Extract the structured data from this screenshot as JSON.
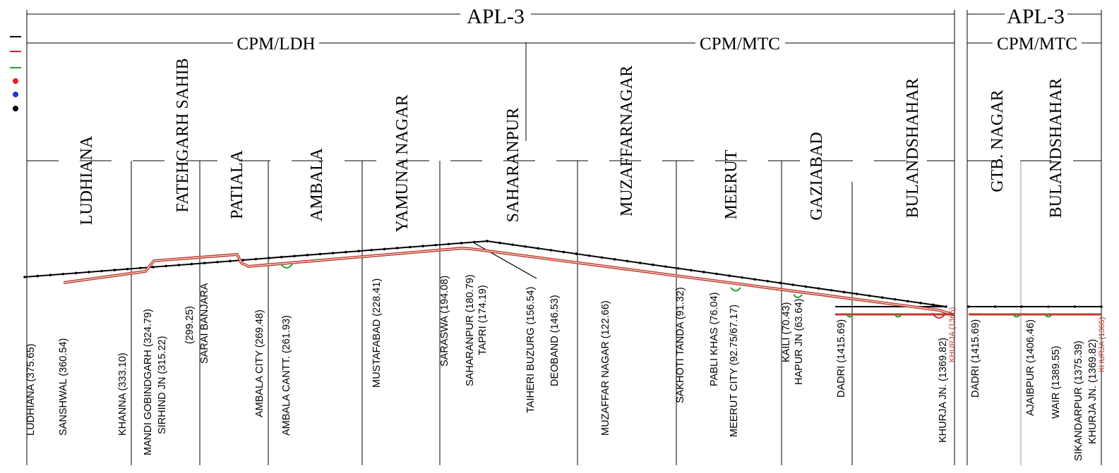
{
  "legend": {
    "items": [
      {
        "symbol": "line",
        "color": "#000000"
      },
      {
        "symbol": "line",
        "color": "#e8201c"
      },
      {
        "symbol": "line",
        "color": "#2aa02a"
      },
      {
        "symbol": "dot",
        "color": "#e8201c"
      },
      {
        "symbol": "dot",
        "color": "#1f2fe0"
      },
      {
        "symbol": "dot",
        "color": "#000000"
      }
    ]
  },
  "headers": {
    "apl_main": "APL-3",
    "cpm_ldh": "CPM/LDH",
    "cpm_mtc_main": "CPM/MTC",
    "apl_side": "APL-3",
    "cpm_mtc_side": "CPM/MTC"
  },
  "districts": [
    "LUDHIANA",
    "FATEHGARH SAHIB",
    "PATIALA",
    "AMBALA",
    "YAMUNA NAGAR",
    "SAHARANPUR",
    "MUZAFFARNAGAR",
    "MEERUT",
    "GAZIABAD",
    "BULANDSHAHAR",
    "GTB. NAGAR",
    "BULANDSHAHAR"
  ],
  "stations": [
    "LUDHIANA (375.65)",
    "SANSHWAL (360.54)",
    "KHANNA (333.10)",
    "MANDI GOBINDGARH (324.79)",
    "SIRHIND JN (315.22)",
    "(299.25)",
    "SARAI BANJARA",
    "AMBALA CITY (269.48)",
    "AMBALA CANTT. (261.93)",
    "MUSTAFABAD (228.41)",
    "SARASWA (194.08)",
    "SAHARANPUR (180.79)",
    "TAPRI (174.19)",
    "TAIHERI BUZURG (156.54)",
    "DEOBAND (146.53)",
    "MUZAFFAR NAGAR (122.66)",
    "SAKHOTI TANDA (91.32)",
    "PABLI KHAS (76.04)",
    "MEERUT CITY (92.75/67.17)",
    "KAILI (70.43)",
    "HAPUR JN (63.64)",
    "DADRI (1415.69)",
    "KHURJA JN. (1369.82)",
    "KHURJA (1365)",
    "DADRI (1415.69)",
    "AJAIBPUR (1406.46)",
    "WAIR (1389.55)",
    "SIKANDARPUR (1375.39)",
    "KHURJA JN. (1369.82)",
    "KHURJA (1365)"
  ]
}
